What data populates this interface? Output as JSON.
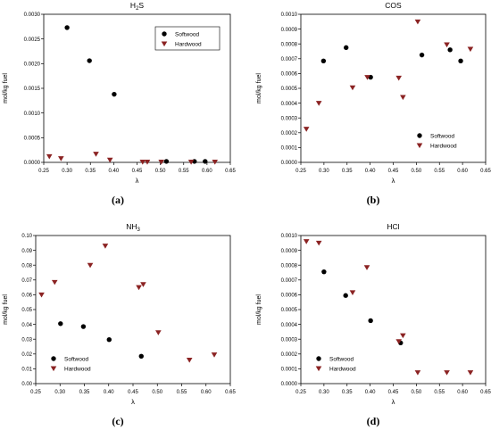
{
  "figure": {
    "panel_labels": [
      "(a)",
      "(b)",
      "(c)",
      "(d)"
    ]
  },
  "colors": {
    "softwood": "#000000",
    "hardwood": "#8b2323",
    "axis": "#000000"
  },
  "chart_data": [
    {
      "type": "scatter",
      "title": "H2S",
      "title_main": "H",
      "title_sub": "2",
      "title_rest": "S",
      "xlabel": "λ",
      "ylabel": "mol/kg fuel",
      "xlim": [
        0.25,
        0.65
      ],
      "ylim": [
        0,
        0.003
      ],
      "xticks": [
        "0.25",
        "0.30",
        "0.35",
        "0.40",
        "0.45",
        "0.50",
        "0.55",
        "0.60",
        "0.65"
      ],
      "yticks": [
        "0.0000",
        "0.0005",
        "0.0010",
        "0.0015",
        "0.0020",
        "0.0025",
        "0.0030"
      ],
      "xtick_values": [
        0.25,
        0.3,
        0.35,
        0.4,
        0.45,
        0.5,
        0.55,
        0.6,
        0.65
      ],
      "ytick_values": [
        0,
        0.0005,
        0.001,
        0.0015,
        0.002,
        0.0025,
        0.003
      ],
      "legend_position": "top-right",
      "series": [
        {
          "name": "Softwood",
          "marker": "circle",
          "x": [
            0.3,
            0.348,
            0.401,
            0.513,
            0.573,
            0.596
          ],
          "y": [
            0.00273,
            0.00206,
            0.00138,
            2e-05,
            2e-05,
            2e-05
          ]
        },
        {
          "name": "Hardwood",
          "marker": "triangle-down",
          "x": [
            0.262,
            0.287,
            0.362,
            0.392,
            0.462,
            0.472,
            0.502,
            0.566,
            0.617
          ],
          "y": [
            0.00012,
            8e-05,
            0.00017,
            5e-05,
            1e-05,
            1e-05,
            1e-05,
            1e-05,
            1e-05
          ]
        }
      ]
    },
    {
      "type": "scatter",
      "title": "COS",
      "xlabel": "λ",
      "ylabel": "mol/kg fuel",
      "xlim": [
        0.25,
        0.65
      ],
      "ylim": [
        0,
        0.001
      ],
      "xticks": [
        "0.25",
        "0.30",
        "0.35",
        "0.40",
        "0.45",
        "0.50",
        "0.55",
        "0.60",
        "0.65"
      ],
      "yticks": [
        "0.0000",
        "0.0001",
        "0.0002",
        "0.0003",
        "0.0004",
        "0.0005",
        "0.0006",
        "0.0007",
        "0.0008",
        "0.0009",
        "0.0010"
      ],
      "xtick_values": [
        0.25,
        0.3,
        0.35,
        0.4,
        0.45,
        0.5,
        0.55,
        0.6,
        0.65
      ],
      "ytick_values": [
        0,
        0.0001,
        0.0002,
        0.0003,
        0.0004,
        0.0005,
        0.0006,
        0.0007,
        0.0008,
        0.0009,
        0.001
      ],
      "legend_position": "bottom-right",
      "series": [
        {
          "name": "Softwood",
          "marker": "circle",
          "x": [
            0.299,
            0.348,
            0.401,
            0.512,
            0.573,
            0.596
          ],
          "y": [
            0.000685,
            0.000775,
            0.000575,
            0.000725,
            0.00076,
            0.000685
          ]
        },
        {
          "name": "Hardwood",
          "marker": "triangle-down",
          "x": [
            0.262,
            0.289,
            0.362,
            0.394,
            0.462,
            0.471,
            0.503,
            0.566,
            0.617
          ],
          "y": [
            0.000225,
            0.0004,
            0.000505,
            0.000575,
            0.00057,
            0.00044,
            0.00095,
            0.000795,
            0.000765
          ]
        }
      ]
    },
    {
      "type": "scatter",
      "title": "NH3",
      "title_main": "NH",
      "title_sub": "3",
      "title_rest": "",
      "xlabel": "λ",
      "ylabel": "mol/kg fuel",
      "xlim": [
        0.25,
        0.65
      ],
      "ylim": [
        0,
        0.1
      ],
      "xticks": [
        "0.25",
        "0.30",
        "0.35",
        "0.40",
        "0.45",
        "0.50",
        "0.55",
        "0.60",
        "0.65"
      ],
      "yticks": [
        "0.00",
        "0.01",
        "0.02",
        "0.03",
        "0.04",
        "0.05",
        "0.06",
        "0.07",
        "0.08",
        "0.09",
        "0.10"
      ],
      "xtick_values": [
        0.25,
        0.3,
        0.35,
        0.4,
        0.45,
        0.5,
        0.55,
        0.6,
        0.65
      ],
      "ytick_values": [
        0,
        0.01,
        0.02,
        0.03,
        0.04,
        0.05,
        0.06,
        0.07,
        0.08,
        0.09,
        0.1
      ],
      "legend_position": "bottom-left",
      "series": [
        {
          "name": "Softwood",
          "marker": "circle",
          "x": [
            0.301,
            0.348,
            0.401,
            0.467
          ],
          "y": [
            0.0405,
            0.0385,
            0.0297,
            0.0185
          ]
        },
        {
          "name": "Hardwood",
          "marker": "triangle-down",
          "x": [
            0.262,
            0.289,
            0.362,
            0.393,
            0.462,
            0.471,
            0.502,
            0.566,
            0.617
          ],
          "y": [
            0.06,
            0.0685,
            0.08,
            0.093,
            0.065,
            0.067,
            0.0345,
            0.016,
            0.0195
          ]
        }
      ]
    },
    {
      "type": "scatter",
      "title": "HCl",
      "xlabel": "λ",
      "ylabel": "mol/kg fuel",
      "xlim": [
        0.25,
        0.65
      ],
      "ylim": [
        0,
        0.001
      ],
      "xticks": [
        "0.25",
        "0.30",
        "0.35",
        "0.40",
        "0.45",
        "0.50",
        "0.55",
        "0.60",
        "0.65"
      ],
      "yticks": [
        "0.0000",
        "0.0001",
        "0.0002",
        "0.0003",
        "0.0004",
        "0.0005",
        "0.0006",
        "0.0007",
        "0.0008",
        "0.0009",
        "0.0010"
      ],
      "xtick_values": [
        0.25,
        0.3,
        0.35,
        0.4,
        0.45,
        0.5,
        0.55,
        0.6,
        0.65
      ],
      "ytick_values": [
        0,
        0.0001,
        0.0002,
        0.0003,
        0.0004,
        0.0005,
        0.0006,
        0.0007,
        0.0008,
        0.0009,
        0.001
      ],
      "legend_position": "bottom-left",
      "series": [
        {
          "name": "Softwood",
          "marker": "circle",
          "x": [
            0.3,
            0.347,
            0.401,
            0.466
          ],
          "y": [
            0.000755,
            0.000595,
            0.000425,
            0.000275
          ]
        },
        {
          "name": "Hardwood",
          "marker": "triangle-down",
          "x": [
            0.262,
            0.289,
            0.362,
            0.393,
            0.462,
            0.471,
            0.503,
            0.566,
            0.617
          ],
          "y": [
            0.00096,
            0.00095,
            0.000615,
            0.000785,
            0.000285,
            0.000325,
            7.5e-05,
            7.5e-05,
            7.5e-05
          ]
        }
      ]
    }
  ]
}
